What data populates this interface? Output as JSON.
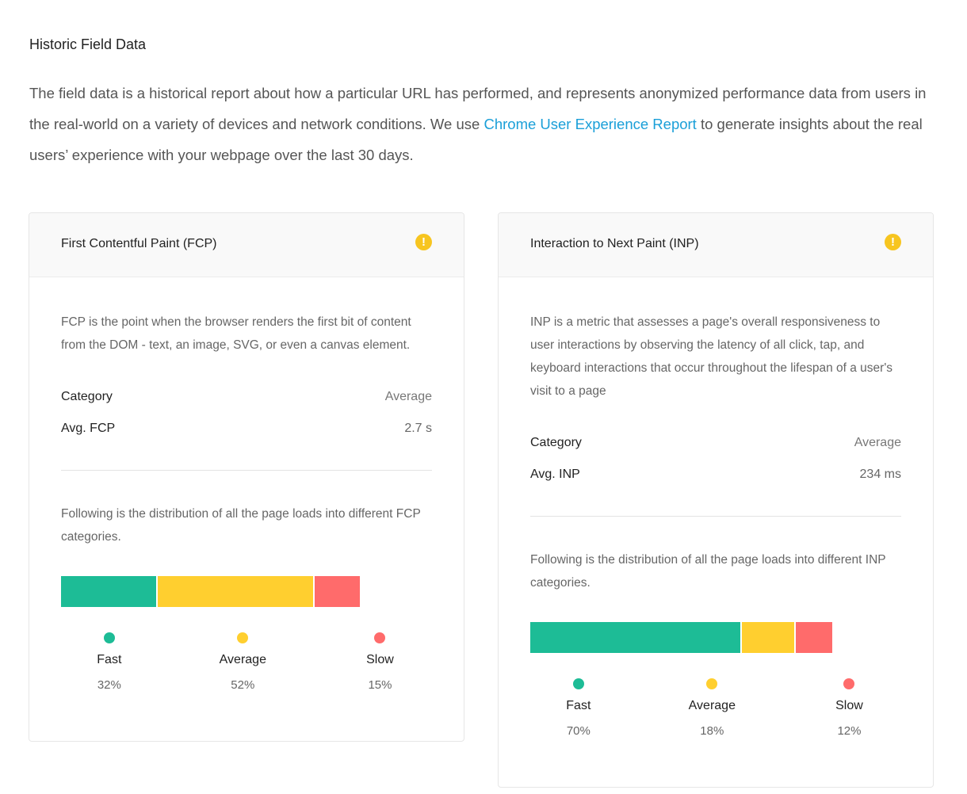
{
  "section": {
    "title": "Historic Field Data",
    "intro_before": "The field data is a historical report about how a particular URL has performed, and represents anonymized performance data from users in the real-world on a variety of devices and network conditions. We use ",
    "intro_link": "Chrome User Experience Report",
    "intro_after": " to generate insights about the real users’ experience with your webpage over the last 30 days."
  },
  "colors": {
    "fast": "#1dbc96",
    "average": "#ffcf2f",
    "slow": "#ff6b6b",
    "warning": "#f7c520",
    "link": "#1a9fd8"
  },
  "cards": [
    {
      "title": "First Contentful Paint (FCP)",
      "warning_icon": "exclamation-circle-icon",
      "warning_glyph": "!",
      "description": "FCP is the point when the browser renders the first bit of content from the DOM - text, an image, SVG, or even a canvas element.",
      "category_header": "Category",
      "average_header": "Average",
      "metric_label": "Avg. FCP",
      "metric_value": "2.7 s",
      "distribution_text": "Following is the distribution of all the page loads into different FCP categories.",
      "distribution": [
        {
          "label": "Fast",
          "pct": "32%",
          "value": 32,
          "color_key": "fast"
        },
        {
          "label": "Average",
          "pct": "52%",
          "value": 52,
          "color_key": "average"
        },
        {
          "label": "Slow",
          "pct": "15%",
          "value": 15,
          "color_key": "slow"
        }
      ]
    },
    {
      "title": "Interaction to Next Paint (INP)",
      "warning_icon": "exclamation-circle-icon",
      "warning_glyph": "!",
      "description": "INP is a metric that assesses a page's overall responsiveness to user interactions by observing the latency of all click, tap, and keyboard interactions that occur throughout the lifespan of a user's visit to a page",
      "category_header": "Category",
      "average_header": "Average",
      "metric_label": "Avg. INP",
      "metric_value": "234 ms",
      "distribution_text": "Following is the distribution of all the page loads into different INP categories.",
      "distribution": [
        {
          "label": "Fast",
          "pct": "70%",
          "value": 70,
          "color_key": "fast"
        },
        {
          "label": "Average",
          "pct": "18%",
          "value": 18,
          "color_key": "average"
        },
        {
          "label": "Slow",
          "pct": "12%",
          "value": 12,
          "color_key": "slow"
        }
      ]
    }
  ]
}
